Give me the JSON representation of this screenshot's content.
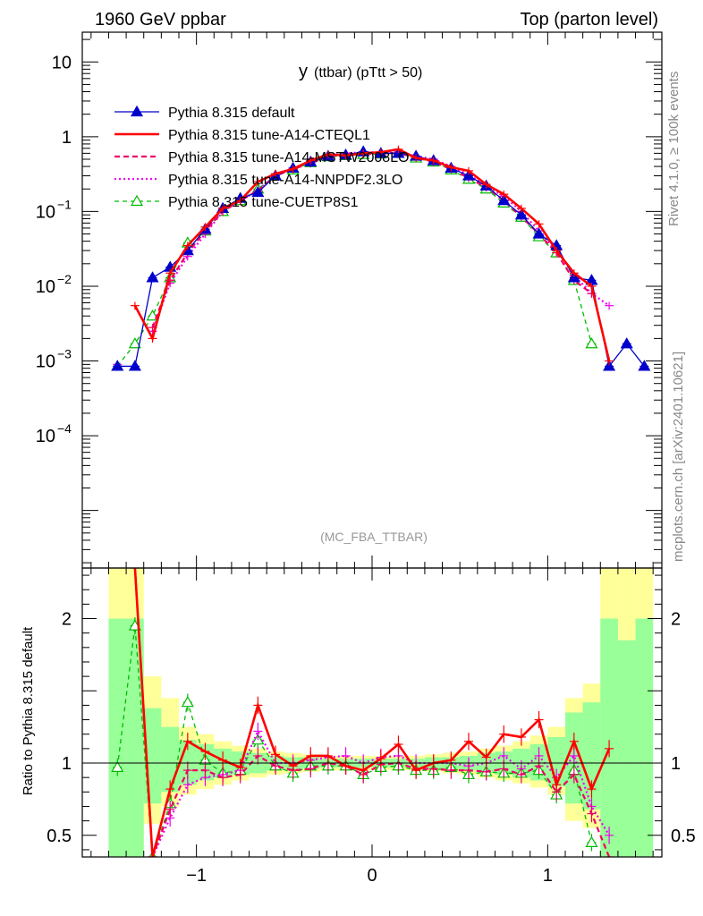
{
  "header": {
    "left": "1960 GeV ppbar",
    "right": "Top (parton level)"
  },
  "side": {
    "rivet": "Rivet 4.1.0, ≥ 100k events",
    "mcplots": "mcplots.cern.ch [arXiv:2401.10621]"
  },
  "colors": {
    "default": "#0000cc",
    "cteql1": "#ff0000",
    "mstw": "#ee0066",
    "nnpdf": "#ee00ee",
    "cuetp": "#00bb00",
    "band_yellow": "#ffff99",
    "band_green": "#99ff99"
  },
  "chart_data": {
    "type": "line",
    "title_main": "y",
    "title_sub": "(ttbar) (pTtt > 50)",
    "watermark": "(MC_FBA_TTBAR)",
    "xlim": [
      -1.65,
      1.65
    ],
    "ylim_log": [
      1.7e-06,
      25
    ],
    "ratio_ylabel": "Ratio to Pythia 8.315 default",
    "ratio_ylim": [
      0.35,
      2.35
    ],
    "x_ticks": [
      {
        "v": -1,
        "label": "−1"
      },
      {
        "v": 0,
        "label": "0"
      },
      {
        "v": 1,
        "label": "1"
      }
    ],
    "y_ticks": [
      {
        "v": 10,
        "label": "10",
        "sup": ""
      },
      {
        "v": 1,
        "label": "1",
        "sup": ""
      },
      {
        "v": 0.1,
        "label": "10",
        "sup": "−1"
      },
      {
        "v": 0.01,
        "label": "10",
        "sup": "−2"
      },
      {
        "v": 0.001,
        "label": "10",
        "sup": "−3"
      },
      {
        "v": 0.0001,
        "label": "10",
        "sup": "−4"
      }
    ],
    "ratio_ticks": [
      {
        "v": 2,
        "label": "2"
      },
      {
        "v": 1,
        "label": "1"
      },
      {
        "v": 0.5,
        "label": "0.5"
      }
    ],
    "x": [
      -1.45,
      -1.35,
      -1.25,
      -1.15,
      -1.05,
      -0.95,
      -0.85,
      -0.75,
      -0.65,
      -0.55,
      -0.45,
      -0.35,
      -0.25,
      -0.15,
      -0.05,
      0.05,
      0.15,
      0.25,
      0.35,
      0.45,
      0.55,
      0.65,
      0.75,
      0.85,
      0.95,
      1.05,
      1.15,
      1.25,
      1.35,
      1.45,
      1.55
    ],
    "series": [
      {
        "key": "default",
        "name": "Pythia 8.315 default",
        "values": [
          0.00085,
          0.00085,
          0.013,
          0.018,
          0.03,
          0.058,
          0.11,
          0.15,
          0.18,
          0.3,
          0.38,
          0.46,
          0.55,
          0.57,
          0.63,
          0.6,
          0.6,
          0.55,
          0.48,
          0.38,
          0.3,
          0.22,
          0.14,
          0.09,
          0.05,
          0.035,
          0.013,
          0.012,
          0.00085,
          0.0017,
          0.00085
        ],
        "ratio": [
          1,
          1,
          1,
          1,
          1,
          1,
          1,
          1,
          1,
          1,
          1,
          1,
          1,
          1,
          1,
          1,
          1,
          1,
          1,
          1,
          1,
          1,
          1,
          1,
          1,
          1,
          1,
          1,
          1,
          1,
          1
        ]
      },
      {
        "key": "cteql1",
        "name": "Pythia 8.315 tune-A14-CTEQL1",
        "values": [
          null,
          0.0055,
          0.002,
          0.015,
          0.035,
          0.062,
          0.11,
          0.14,
          0.25,
          0.32,
          0.37,
          0.48,
          0.58,
          0.56,
          0.6,
          0.62,
          0.68,
          0.52,
          0.48,
          0.39,
          0.35,
          0.23,
          0.17,
          0.11,
          0.068,
          0.03,
          0.015,
          0.01,
          0.001,
          null,
          null
        ],
        "ratio": [
          null,
          2.6,
          0.15,
          0.82,
          1.15,
          1.08,
          1.02,
          0.97,
          1.4,
          1.06,
          0.98,
          1.05,
          1.05,
          0.98,
          0.95,
          1.03,
          1.13,
          0.95,
          1.0,
          1.02,
          1.15,
          1.04,
          1.2,
          1.18,
          1.3,
          0.85,
          1.15,
          0.82,
          1.1,
          null,
          null
        ]
      },
      {
        "key": "mstw",
        "name": "Pythia 8.315 tune-A14-MSTW2008LO",
        "values": [
          null,
          null,
          0.0028,
          0.012,
          0.028,
          0.055,
          0.1,
          0.14,
          0.19,
          0.3,
          0.37,
          0.44,
          0.55,
          0.56,
          0.58,
          0.6,
          0.6,
          0.53,
          0.46,
          0.37,
          0.28,
          0.21,
          0.14,
          0.085,
          0.05,
          0.028,
          0.012,
          0.008,
          null,
          null,
          null
        ],
        "ratio": [
          null,
          null,
          0.2,
          0.68,
          0.95,
          0.95,
          0.9,
          0.92,
          1.05,
          0.98,
          0.95,
          0.96,
          1.0,
          0.98,
          0.92,
          0.99,
          1.0,
          0.96,
          0.96,
          0.95,
          0.95,
          0.94,
          0.96,
          0.92,
          0.98,
          0.8,
          0.92,
          0.65,
          0.3,
          null,
          null
        ]
      },
      {
        "key": "nnpdf",
        "name": "Pythia 8.315 tune-A14-NNPDF2.3LO",
        "values": [
          0.0009,
          null,
          0.0025,
          0.011,
          0.025,
          0.05,
          0.1,
          0.14,
          0.19,
          0.3,
          0.38,
          0.47,
          0.56,
          0.6,
          0.62,
          0.62,
          0.62,
          0.55,
          0.5,
          0.4,
          0.31,
          0.22,
          0.16,
          0.1,
          0.055,
          0.03,
          0.014,
          0.008,
          0.0055,
          null,
          null
        ],
        "ratio": [
          null,
          null,
          0.25,
          0.62,
          0.85,
          0.9,
          0.92,
          0.95,
          1.22,
          1.0,
          1.0,
          1.02,
          1.04,
          1.05,
          1.0,
          1.04,
          1.05,
          1.0,
          1.0,
          1.0,
          0.98,
          1.0,
          1.05,
          0.96,
          1.05,
          0.9,
          1.05,
          0.7,
          0.5,
          null,
          null
        ]
      },
      {
        "key": "cuetp",
        "name": "Pythia 8.315 tune-CUETP8S1",
        "values": [
          0.00085,
          0.0017,
          0.004,
          0.013,
          0.038,
          0.055,
          0.1,
          0.14,
          0.2,
          0.3,
          0.36,
          0.45,
          0.54,
          0.56,
          0.58,
          0.59,
          0.6,
          0.52,
          0.46,
          0.36,
          0.27,
          0.2,
          0.13,
          0.084,
          0.046,
          0.028,
          0.012,
          0.0017,
          null,
          null,
          null
        ],
        "ratio": [
          0.97,
          1.95,
          0.35,
          0.72,
          1.42,
          1.02,
          0.93,
          0.95,
          1.16,
          0.98,
          0.93,
          0.98,
          0.98,
          0.98,
          0.92,
          0.97,
          0.98,
          0.95,
          0.95,
          0.97,
          0.92,
          0.94,
          0.93,
          0.93,
          0.95,
          0.78,
          0.95,
          0.45,
          null,
          null,
          null
        ]
      }
    ],
    "band_yellow": [
      [
        -1.5,
        -1.4,
        0.3,
        2.4
      ],
      [
        -1.4,
        -1.3,
        0.3,
        2.4
      ],
      [
        -1.3,
        -1.2,
        0.58,
        1.6
      ],
      [
        -1.2,
        -1.1,
        0.7,
        1.45
      ],
      [
        -1.1,
        -1.0,
        0.78,
        1.25
      ],
      [
        -1.0,
        -0.9,
        0.82,
        1.2
      ],
      [
        -0.9,
        -0.8,
        0.85,
        1.15
      ],
      [
        -0.8,
        -0.7,
        0.88,
        1.12
      ],
      [
        -0.7,
        -0.6,
        0.9,
        1.1
      ],
      [
        -0.6,
        -0.5,
        0.92,
        1.08
      ],
      [
        -0.5,
        -0.4,
        0.93,
        1.07
      ],
      [
        -0.4,
        -0.3,
        0.94,
        1.06
      ],
      [
        -0.3,
        -0.2,
        0.95,
        1.05
      ],
      [
        -0.2,
        -0.1,
        0.95,
        1.05
      ],
      [
        -0.1,
        0.0,
        0.95,
        1.05
      ],
      [
        0.0,
        0.1,
        0.95,
        1.05
      ],
      [
        0.1,
        0.2,
        0.95,
        1.05
      ],
      [
        0.2,
        0.3,
        0.95,
        1.05
      ],
      [
        0.3,
        0.4,
        0.94,
        1.06
      ],
      [
        0.4,
        0.5,
        0.93,
        1.07
      ],
      [
        0.5,
        0.6,
        0.92,
        1.08
      ],
      [
        0.6,
        0.7,
        0.9,
        1.1
      ],
      [
        0.7,
        0.8,
        0.88,
        1.12
      ],
      [
        0.8,
        0.9,
        0.86,
        1.15
      ],
      [
        0.9,
        1.0,
        0.83,
        1.19
      ],
      [
        1.0,
        1.1,
        0.78,
        1.25
      ],
      [
        1.1,
        1.2,
        0.6,
        1.45
      ],
      [
        1.2,
        1.3,
        0.55,
        1.55
      ],
      [
        1.3,
        1.4,
        0.3,
        2.4
      ],
      [
        1.4,
        1.5,
        0.3,
        2.4
      ],
      [
        1.5,
        1.6,
        0.3,
        2.4
      ]
    ],
    "band_green": [
      [
        -1.5,
        -1.4,
        0.3,
        2.0
      ],
      [
        -1.4,
        -1.3,
        0.3,
        2.0
      ],
      [
        -1.3,
        -1.2,
        0.72,
        1.38
      ],
      [
        -1.2,
        -1.1,
        0.8,
        1.25
      ],
      [
        -1.1,
        -1.0,
        0.85,
        1.16
      ],
      [
        -1.0,
        -0.9,
        0.88,
        1.13
      ],
      [
        -0.9,
        -0.8,
        0.9,
        1.1
      ],
      [
        -0.8,
        -0.7,
        0.92,
        1.08
      ],
      [
        -0.7,
        -0.6,
        0.93,
        1.07
      ],
      [
        -0.6,
        -0.5,
        0.95,
        1.05
      ],
      [
        -0.5,
        -0.4,
        0.96,
        1.04
      ],
      [
        -0.4,
        -0.3,
        0.96,
        1.04
      ],
      [
        -0.3,
        -0.2,
        0.97,
        1.03
      ],
      [
        -0.2,
        -0.1,
        0.97,
        1.03
      ],
      [
        -0.1,
        0.0,
        0.97,
        1.03
      ],
      [
        0.0,
        0.1,
        0.97,
        1.03
      ],
      [
        0.1,
        0.2,
        0.97,
        1.03
      ],
      [
        0.2,
        0.3,
        0.97,
        1.03
      ],
      [
        0.3,
        0.4,
        0.96,
        1.04
      ],
      [
        0.4,
        0.5,
        0.96,
        1.04
      ],
      [
        0.5,
        0.6,
        0.95,
        1.05
      ],
      [
        0.6,
        0.7,
        0.93,
        1.07
      ],
      [
        0.7,
        0.8,
        0.92,
        1.08
      ],
      [
        0.8,
        0.9,
        0.9,
        1.1
      ],
      [
        0.9,
        1.0,
        0.88,
        1.13
      ],
      [
        1.0,
        1.1,
        0.84,
        1.18
      ],
      [
        1.1,
        1.2,
        0.72,
        1.35
      ],
      [
        1.2,
        1.3,
        0.68,
        1.42
      ],
      [
        1.3,
        1.4,
        0.3,
        2.0
      ],
      [
        1.4,
        1.5,
        0.3,
        1.85
      ],
      [
        1.5,
        1.6,
        0.3,
        2.0
      ]
    ]
  }
}
